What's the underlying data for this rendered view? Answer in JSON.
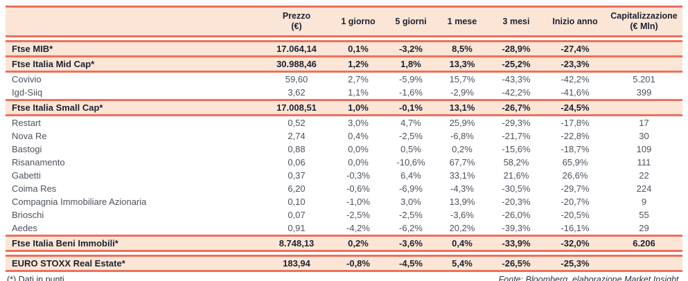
{
  "colors": {
    "accent_line": "#ef6f59",
    "band_background": "#fbe5d6",
    "text_bold": "#1c222e",
    "text_regular": "#4b515b"
  },
  "chart_data": {
    "type": "table",
    "title": "",
    "columns": {
      "name": "",
      "prezzo_line1": "Prezzo",
      "prezzo_line2": "(€)",
      "g1": "1 giorno",
      "g5": "5 giorni",
      "m1": "1 mese",
      "m3": "3 mesi",
      "ytd": "Inizio anno",
      "cap_line1": "Capitalizzazione",
      "cap_line2": "(€ Mln)"
    },
    "rows": [
      {
        "type": "index",
        "name": "Ftse MIB*",
        "prezzo": "17.064,14",
        "g1": "0,1%",
        "g5": "-3,2%",
        "m1": "8,5%",
        "m3": "-28,9%",
        "ytd": "-27,4%",
        "cap": ""
      },
      {
        "type": "index",
        "name": "Ftse Italia Mid Cap*",
        "prezzo": "30.988,46",
        "g1": "1,2%",
        "g5": "1,8%",
        "m1": "13,3%",
        "m3": "-25,2%",
        "ytd": "-23,3%",
        "cap": ""
      },
      {
        "type": "stock",
        "name": "Covivio",
        "prezzo": "59,60",
        "g1": "2,7%",
        "g5": "-5,9%",
        "m1": "15,7%",
        "m3": "-43,3%",
        "ytd": "-42,2%",
        "cap": "5.201"
      },
      {
        "type": "stock",
        "name": "Igd-Siiq",
        "prezzo": "3,62",
        "g1": "1,1%",
        "g5": "-1,6%",
        "m1": "-2,9%",
        "m3": "-42,2%",
        "ytd": "-41,6%",
        "cap": "399"
      },
      {
        "type": "index",
        "name": "Ftse Italia Small Cap*",
        "prezzo": "17.008,51",
        "g1": "1,0%",
        "g5": "-0,1%",
        "m1": "13,1%",
        "m3": "-26,7%",
        "ytd": "-24,5%",
        "cap": ""
      },
      {
        "type": "stock",
        "name": "Restart",
        "prezzo": "0,52",
        "g1": "3,0%",
        "g5": "4,7%",
        "m1": "25,9%",
        "m3": "-29,3%",
        "ytd": "-17,8%",
        "cap": "17"
      },
      {
        "type": "stock",
        "name": "Nova Re",
        "prezzo": "2,74",
        "g1": "0,4%",
        "g5": "-2,5%",
        "m1": "-6,8%",
        "m3": "-21,7%",
        "ytd": "-22,8%",
        "cap": "30"
      },
      {
        "type": "stock",
        "name": "Bastogi",
        "prezzo": "0,88",
        "g1": "0,0%",
        "g5": "0,5%",
        "m1": "0,2%",
        "m3": "-15,6%",
        "ytd": "-18,7%",
        "cap": "109"
      },
      {
        "type": "stock",
        "name": "Risanamento",
        "prezzo": "0,06",
        "g1": "0,0%",
        "g5": "-10,6%",
        "m1": "67,7%",
        "m3": "58,2%",
        "ytd": "65,9%",
        "cap": "111"
      },
      {
        "type": "stock",
        "name": "Gabetti",
        "prezzo": "0,37",
        "g1": "-0,3%",
        "g5": "6,4%",
        "m1": "33,1%",
        "m3": "21,6%",
        "ytd": "26,6%",
        "cap": "22"
      },
      {
        "type": "stock",
        "name": "Coima Res",
        "prezzo": "6,20",
        "g1": "-0,6%",
        "g5": "-6,9%",
        "m1": "-4,3%",
        "m3": "-30,5%",
        "ytd": "-29,7%",
        "cap": "224"
      },
      {
        "type": "stock",
        "name": "Compagnia Immobiliare Azionaria",
        "prezzo": "0,10",
        "g1": "-1,0%",
        "g5": "3,0%",
        "m1": "13,9%",
        "m3": "-20,3%",
        "ytd": "-20,7%",
        "cap": "9"
      },
      {
        "type": "stock",
        "name": "Brioschi",
        "prezzo": "0,07",
        "g1": "-2,5%",
        "g5": "-2,5%",
        "m1": "-3,6%",
        "m3": "-26,0%",
        "ytd": "-20,5%",
        "cap": "55"
      },
      {
        "type": "stock",
        "name": "Aedes",
        "prezzo": "0,91",
        "g1": "-4,2%",
        "g5": "-6,2%",
        "m1": "20,2%",
        "m3": "-39,3%",
        "ytd": "-16,1%",
        "cap": "29"
      },
      {
        "type": "index",
        "name": "Ftse Italia Beni Immobili*",
        "prezzo": "8.748,13",
        "g1": "0,2%",
        "g5": "-3,6%",
        "m1": "0,4%",
        "m3": "-33,9%",
        "ytd": "-32,0%",
        "cap": "6.206"
      },
      {
        "type": "index",
        "name": "EURO STOXX Real Estate*",
        "prezzo": "183,94",
        "g1": "-0,8%",
        "g5": "-4,5%",
        "m1": "5,4%",
        "m3": "-26,5%",
        "ytd": "-25,3%",
        "cap": ""
      }
    ]
  },
  "footer": {
    "note": "(*) Dati in punti",
    "source": "Fonte: Bloomberg, elaborazione Market Insight."
  }
}
